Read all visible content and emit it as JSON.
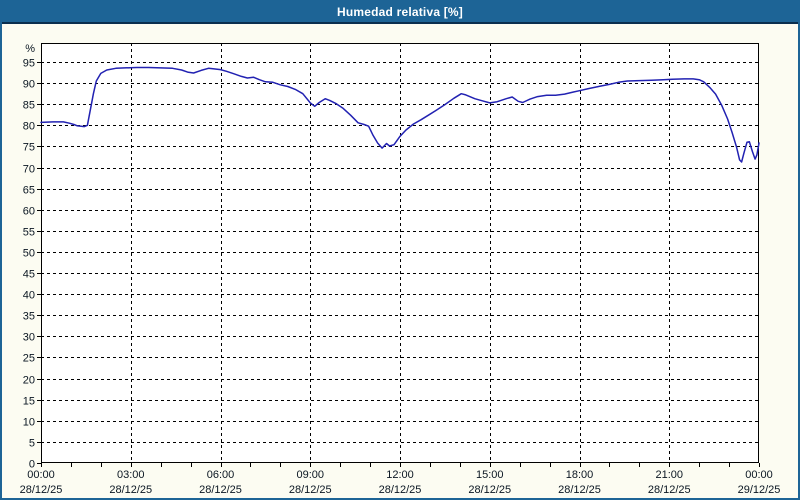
{
  "window": {
    "title": "Humedad relativa [%]"
  },
  "colors": {
    "title_bar_bg": "#1d6496",
    "title_bar_underline": "#0a2e4e",
    "frame_border": "#1d6496",
    "page_bg": "#fcfcf2",
    "plot_bg": "#ffffff",
    "grid": "#000000",
    "axis": "#000000",
    "tick_text": "#0a1622",
    "series_line": "#2222b2",
    "title_text": "#ffffff"
  },
  "chart_data": {
    "type": "line",
    "title": "Humedad relativa [%]",
    "xlabel": "",
    "ylabel": "%",
    "ylim": [
      0,
      99.5
    ],
    "y_ticks": [
      0,
      5,
      10,
      15,
      20,
      25,
      30,
      35,
      40,
      45,
      50,
      55,
      60,
      65,
      70,
      75,
      80,
      85,
      90,
      95
    ],
    "x_range_hours": [
      0,
      24
    ],
    "minor_x_tick_hours": 1,
    "grid": "dashed",
    "legend_position": "none",
    "x_ticks": [
      {
        "hour": 0,
        "time": "00:00",
        "date": "28/12/25"
      },
      {
        "hour": 3,
        "time": "03:00",
        "date": "28/12/25"
      },
      {
        "hour": 6,
        "time": "06:00",
        "date": "28/12/25"
      },
      {
        "hour": 9,
        "time": "09:00",
        "date": "28/12/25"
      },
      {
        "hour": 12,
        "time": "12:00",
        "date": "28/12/25"
      },
      {
        "hour": 15,
        "time": "15:00",
        "date": "28/12/25"
      },
      {
        "hour": 18,
        "time": "18:00",
        "date": "28/12/25"
      },
      {
        "hour": 21,
        "time": "21:00",
        "date": "28/12/25"
      },
      {
        "hour": 24,
        "time": "00:00",
        "date": "29/12/25"
      }
    ],
    "series": [
      {
        "name": "Humedad relativa",
        "unit": "%",
        "color": "#2222b2",
        "points": [
          [
            0.0,
            80.7
          ],
          [
            0.4,
            80.8
          ],
          [
            0.75,
            80.8
          ],
          [
            0.95,
            80.5
          ],
          [
            1.1,
            80.2
          ],
          [
            1.2,
            79.9
          ],
          [
            1.45,
            79.7
          ],
          [
            1.55,
            80.0
          ],
          [
            1.63,
            83.0
          ],
          [
            1.75,
            87.5
          ],
          [
            1.85,
            90.5
          ],
          [
            2.0,
            92.3
          ],
          [
            2.2,
            93.1
          ],
          [
            2.5,
            93.5
          ],
          [
            2.8,
            93.6
          ],
          [
            3.2,
            93.7
          ],
          [
            3.6,
            93.7
          ],
          [
            4.0,
            93.6
          ],
          [
            4.4,
            93.5
          ],
          [
            4.7,
            93.1
          ],
          [
            4.9,
            92.6
          ],
          [
            5.1,
            92.4
          ],
          [
            5.35,
            93.0
          ],
          [
            5.6,
            93.5
          ],
          [
            5.75,
            93.4
          ],
          [
            6.0,
            93.2
          ],
          [
            6.2,
            92.8
          ],
          [
            6.45,
            92.2
          ],
          [
            6.7,
            91.6
          ],
          [
            6.9,
            91.2
          ],
          [
            7.1,
            91.4
          ],
          [
            7.3,
            90.8
          ],
          [
            7.5,
            90.3
          ],
          [
            7.75,
            90.2
          ],
          [
            8.0,
            89.6
          ],
          [
            8.25,
            89.2
          ],
          [
            8.5,
            88.5
          ],
          [
            8.75,
            87.5
          ],
          [
            9.0,
            85.3
          ],
          [
            9.15,
            84.5
          ],
          [
            9.3,
            85.4
          ],
          [
            9.5,
            86.3
          ],
          [
            9.65,
            85.9
          ],
          [
            9.85,
            85.2
          ],
          [
            10.1,
            84.0
          ],
          [
            10.35,
            82.4
          ],
          [
            10.6,
            80.6
          ],
          [
            10.8,
            80.2
          ],
          [
            10.95,
            79.8
          ],
          [
            11.1,
            77.6
          ],
          [
            11.25,
            75.8
          ],
          [
            11.4,
            74.6
          ],
          [
            11.55,
            75.7
          ],
          [
            11.65,
            75.1
          ],
          [
            11.8,
            75.4
          ],
          [
            12.0,
            77.4
          ],
          [
            12.2,
            78.9
          ],
          [
            12.45,
            80.3
          ],
          [
            12.7,
            81.3
          ],
          [
            12.95,
            82.4
          ],
          [
            13.2,
            83.5
          ],
          [
            13.5,
            84.9
          ],
          [
            13.8,
            86.4
          ],
          [
            14.05,
            87.5
          ],
          [
            14.2,
            87.2
          ],
          [
            14.5,
            86.3
          ],
          [
            14.75,
            85.8
          ],
          [
            15.0,
            85.3
          ],
          [
            15.25,
            85.6
          ],
          [
            15.55,
            86.3
          ],
          [
            15.75,
            86.7
          ],
          [
            15.95,
            85.7
          ],
          [
            16.1,
            85.4
          ],
          [
            16.35,
            86.2
          ],
          [
            16.6,
            86.8
          ],
          [
            16.9,
            87.1
          ],
          [
            17.2,
            87.1
          ],
          [
            17.5,
            87.4
          ],
          [
            17.8,
            87.9
          ],
          [
            18.0,
            88.2
          ],
          [
            18.3,
            88.7
          ],
          [
            18.7,
            89.3
          ],
          [
            19.0,
            89.7
          ],
          [
            19.3,
            90.2
          ],
          [
            19.6,
            90.5
          ],
          [
            20.0,
            90.6
          ],
          [
            20.4,
            90.7
          ],
          [
            20.8,
            90.8
          ],
          [
            21.1,
            90.9
          ],
          [
            21.5,
            91.0
          ],
          [
            21.8,
            91.0
          ],
          [
            22.0,
            90.8
          ],
          [
            22.15,
            90.3
          ],
          [
            22.35,
            89.0
          ],
          [
            22.55,
            87.4
          ],
          [
            22.75,
            84.8
          ],
          [
            22.95,
            81.5
          ],
          [
            23.1,
            78.3
          ],
          [
            23.25,
            74.8
          ],
          [
            23.35,
            71.8
          ],
          [
            23.42,
            71.3
          ],
          [
            23.5,
            73.5
          ],
          [
            23.6,
            76.0
          ],
          [
            23.68,
            76.1
          ],
          [
            23.78,
            73.8
          ],
          [
            23.87,
            72.0
          ],
          [
            23.93,
            73.0
          ],
          [
            24.0,
            75.8
          ]
        ]
      }
    ]
  }
}
